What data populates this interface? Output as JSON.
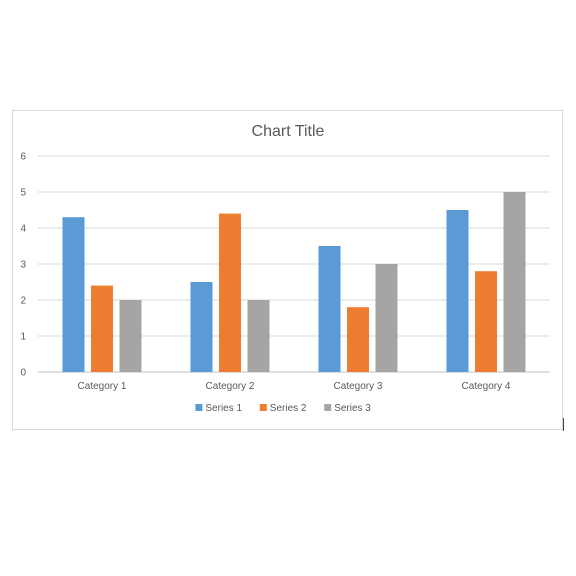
{
  "chart_data": {
    "type": "bar",
    "title": "Chart Title",
    "xlabel": "",
    "ylabel": "",
    "categories": [
      "Category 1",
      "Category 2",
      "Category 3",
      "Category 4"
    ],
    "series": [
      {
        "name": "Series 1",
        "values": [
          4.3,
          2.5,
          3.5,
          4.5
        ],
        "color": "#5b9bd5"
      },
      {
        "name": "Series 2",
        "values": [
          2.4,
          4.4,
          1.8,
          2.8
        ],
        "color": "#ed7d31"
      },
      {
        "name": "Series 3",
        "values": [
          2.0,
          2.0,
          3.0,
          5.0
        ],
        "color": "#a5a5a5"
      }
    ],
    "ylim": [
      0,
      6
    ],
    "yticks": [
      "0",
      "1",
      "2",
      "3",
      "4",
      "5",
      "6"
    ],
    "grid": true,
    "legend_position": "bottom"
  }
}
